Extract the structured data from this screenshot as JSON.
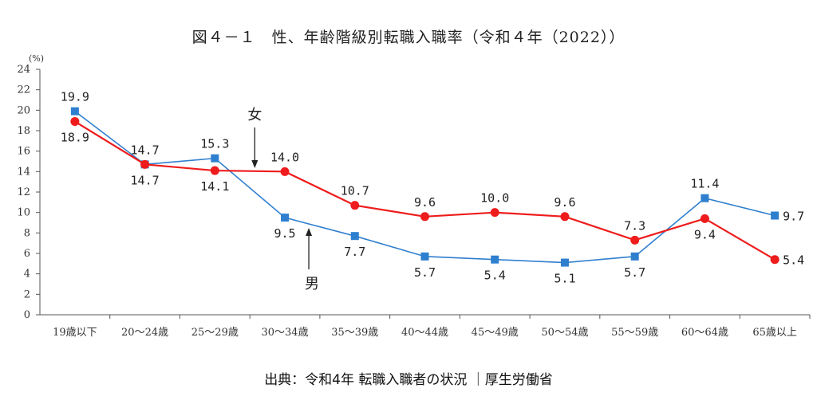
{
  "chart_data": {
    "type": "line",
    "title": "図４－１　性、年齢階級別転職入職率（令和４年（2022））",
    "ylabel": "(%)",
    "ylim": [
      0,
      24
    ],
    "yticks": [
      "0",
      "2",
      "4",
      "6",
      "8",
      "10",
      "12",
      "14",
      "16",
      "18",
      "20",
      "22",
      "24"
    ],
    "categories": [
      "19歳以下",
      "20～24歳",
      "25～29歳",
      "30～34歳",
      "35～39歳",
      "40～44歳",
      "45～49歳",
      "50～54歳",
      "55～59歳",
      "60～64歳",
      "65歳以上"
    ],
    "series": [
      {
        "name": "男",
        "color": "#2f7fcf",
        "marker": "square",
        "values": [
          19.9,
          14.7,
          15.3,
          9.5,
          7.7,
          5.7,
          5.4,
          5.1,
          5.7,
          11.4,
          9.7
        ],
        "labels": [
          "19.9",
          "14.7",
          "15.3",
          "9.5",
          "7.7",
          "5.7",
          "5.4",
          "5.1",
          "5.7",
          "11.4",
          "9.7"
        ]
      },
      {
        "name": "女",
        "color": "#ee1c1c",
        "marker": "circle",
        "values": [
          18.9,
          14.7,
          14.1,
          14.0,
          10.7,
          9.6,
          10.0,
          9.6,
          7.3,
          9.4,
          5.4
        ],
        "labels": [
          "18.9",
          "14.7",
          "14.1",
          "14.0",
          "10.7",
          "9.6",
          "10.0",
          "9.6",
          "7.3",
          "9.4",
          "5.4"
        ]
      }
    ],
    "annotations": [
      "女",
      "男"
    ],
    "grid": false
  },
  "source": "出典：令和4年 転職入職者の状況 ｜厚生労働省"
}
